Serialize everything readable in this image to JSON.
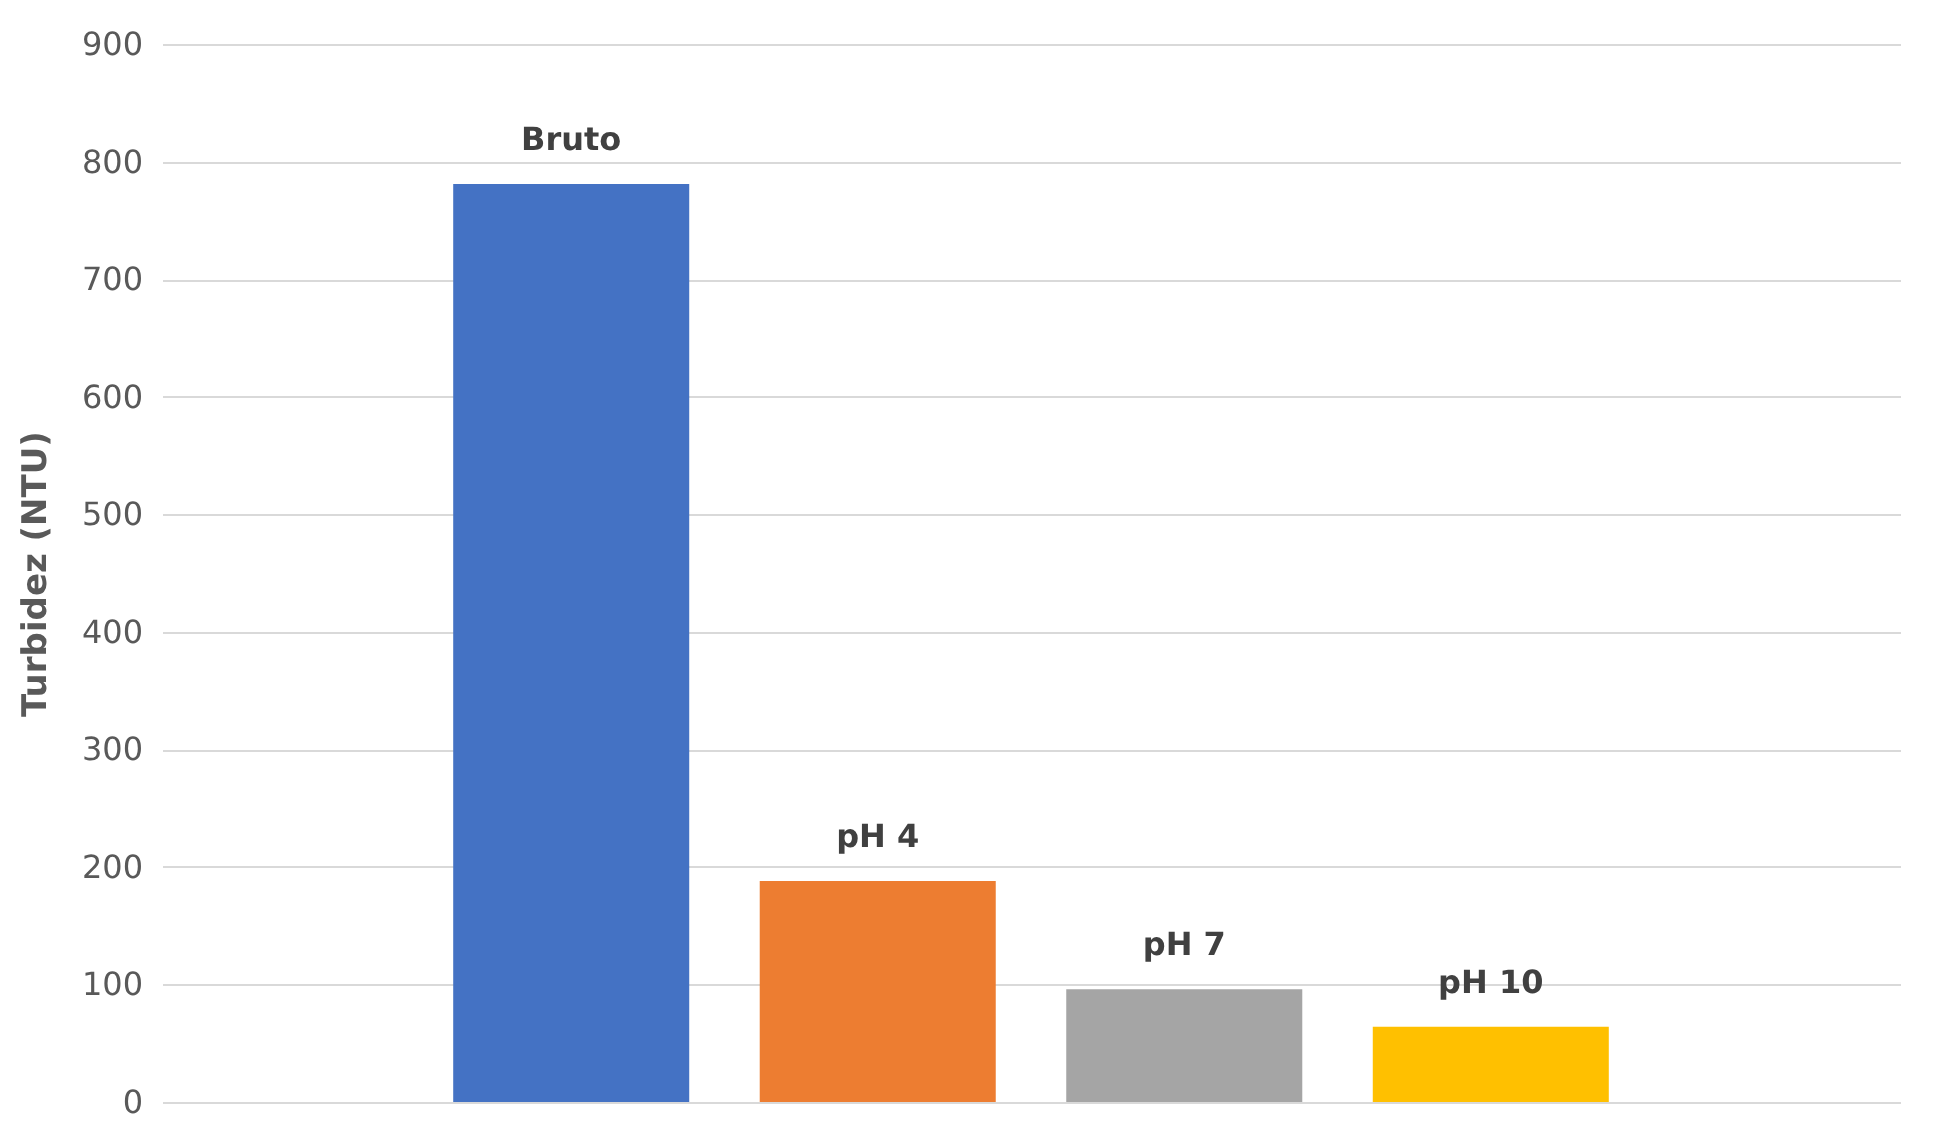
{
  "chart_data": {
    "type": "bar",
    "ylabel": "Turbidez (NTU)",
    "categories": [
      "Bruto",
      "pH 4",
      "pH 7",
      "pH 10"
    ],
    "values": [
      781,
      188,
      96,
      64
    ],
    "colors": [
      "#4472c4",
      "#ed7d31",
      "#a5a5a5",
      "#ffc000"
    ],
    "ylim": [
      0,
      900
    ],
    "yticks": [
      0,
      100,
      200,
      300,
      400,
      500,
      600,
      700,
      800,
      900
    ],
    "grid": "y",
    "tick_labels": "y"
  }
}
